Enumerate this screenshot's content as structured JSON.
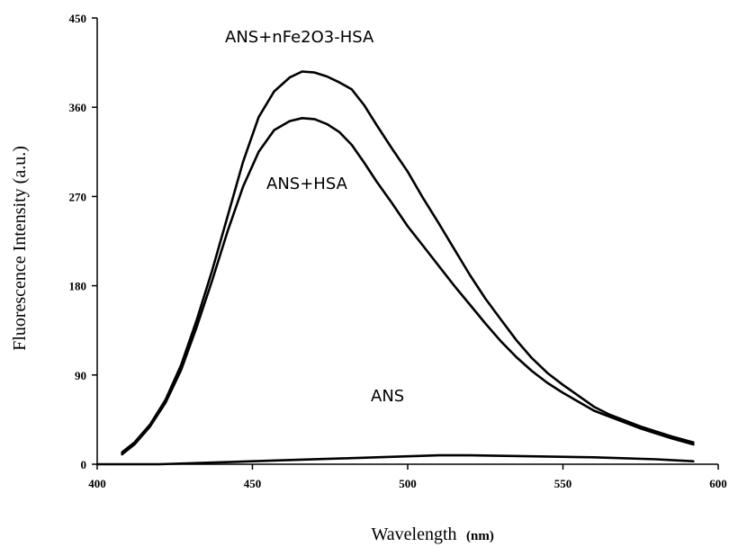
{
  "chart_data": {
    "type": "line",
    "xlabel": "Wavelength",
    "xlabel_unit": "(nm)",
    "ylabel": "Fluorescence Intensity  (a.u.)",
    "xlim": [
      400,
      600
    ],
    "ylim": [
      0,
      450
    ],
    "xticks": [
      "400",
      "450",
      "500",
      "550",
      "600"
    ],
    "yticks": [
      "0",
      "90",
      "180",
      "270",
      "360",
      "450"
    ],
    "grid": false,
    "series": [
      {
        "name": "ANS+nFe2O3-HSA",
        "x": [
          408,
          412,
          417,
          422,
          427,
          432,
          437,
          442,
          447,
          452,
          457,
          462,
          466,
          470,
          474,
          478,
          482,
          486,
          490,
          495,
          500,
          505,
          510,
          515,
          520,
          525,
          530,
          535,
          540,
          545,
          550,
          555,
          560,
          565,
          570,
          575,
          580,
          585,
          592
        ],
        "y": [
          12,
          22,
          40,
          65,
          100,
          145,
          195,
          250,
          305,
          350,
          376,
          390,
          396,
          395,
          391,
          385,
          378,
          362,
          342,
          318,
          295,
          268,
          243,
          217,
          191,
          167,
          146,
          125,
          107,
          92,
          80,
          69,
          58,
          50,
          44,
          38,
          33,
          28,
          22
        ]
      },
      {
        "name": "ANS+HSA",
        "x": [
          408,
          412,
          417,
          422,
          427,
          432,
          437,
          442,
          447,
          452,
          457,
          462,
          466,
          470,
          474,
          478,
          482,
          486,
          490,
          495,
          500,
          505,
          510,
          515,
          520,
          525,
          530,
          535,
          540,
          545,
          550,
          555,
          560,
          565,
          570,
          575,
          580,
          585,
          592
        ],
        "y": [
          10,
          20,
          38,
          62,
          95,
          138,
          185,
          235,
          280,
          315,
          337,
          346,
          349,
          348,
          343,
          335,
          322,
          304,
          285,
          263,
          240,
          220,
          200,
          180,
          161,
          142,
          124,
          108,
          94,
          82,
          72,
          63,
          54,
          48,
          42,
          36,
          31,
          26,
          20
        ]
      },
      {
        "name": "ANS",
        "x": [
          400,
          420,
          440,
          460,
          480,
          500,
          510,
          520,
          540,
          560,
          580,
          592
        ],
        "y": [
          0,
          0,
          2,
          4,
          6,
          8,
          9,
          9,
          8,
          7,
          5,
          3
        ]
      }
    ]
  }
}
